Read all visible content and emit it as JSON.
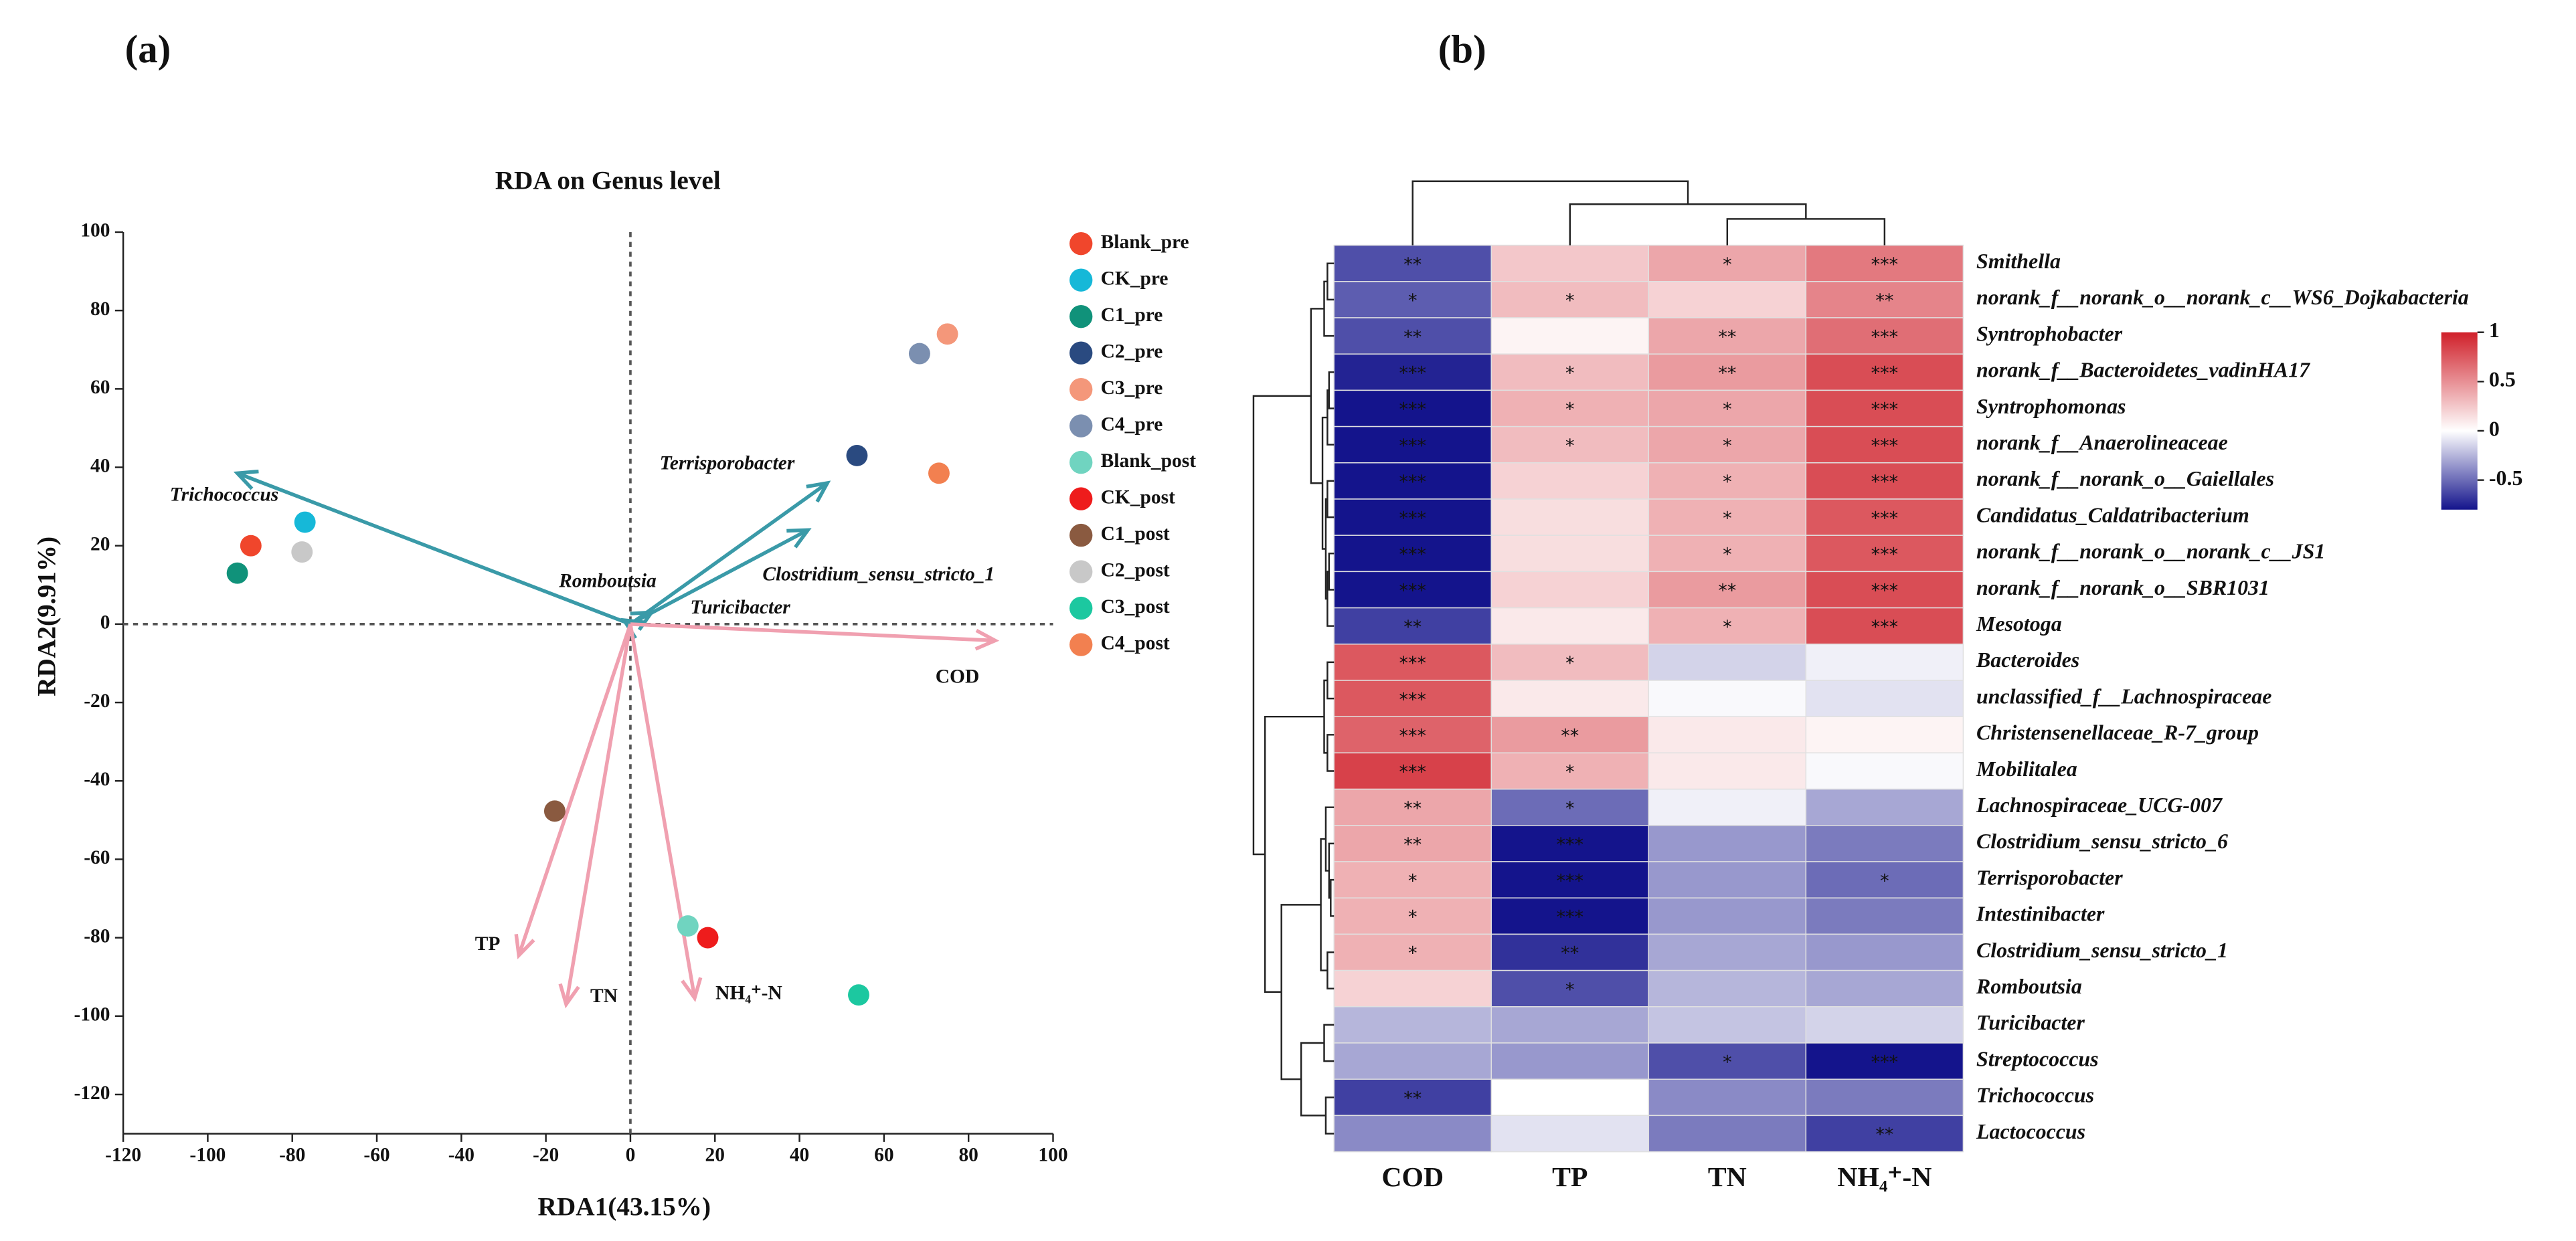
{
  "chart_data": [
    {
      "type": "scatter",
      "panel_label": "(a)",
      "title": "RDA on Genus level",
      "x_label": "RDA1(43.15%)",
      "y_label": "RDA2(9.91%)",
      "xlim": [
        -120,
        100
      ],
      "ylim": [
        -130,
        100
      ],
      "xticks": [
        -120,
        -100,
        -80,
        -60,
        -40,
        -20,
        0,
        20,
        40,
        60,
        80,
        100
      ],
      "yticks": [
        -120,
        -100,
        -80,
        -60,
        -40,
        -20,
        0,
        20,
        40,
        60,
        80,
        100
      ],
      "series": [
        {
          "name": "Blank_pre",
          "color": "#f0462c",
          "x": [
            -89.8
          ],
          "values": [
            20
          ]
        },
        {
          "name": "CK_pre",
          "color": "#16b8d8",
          "x": [
            -77
          ],
          "values": [
            26
          ]
        },
        {
          "name": "C1_pre",
          "color": "#10927a",
          "x": [
            -93
          ],
          "values": [
            13
          ]
        },
        {
          "name": "C2_pre",
          "color": "#2a4a80",
          "x": [
            53.6
          ],
          "values": [
            43
          ]
        },
        {
          "name": "C3_pre",
          "color": "#f4977a",
          "x": [
            75
          ],
          "values": [
            74
          ]
        },
        {
          "name": "C4_pre",
          "color": "#7b8fb0",
          "x": [
            68.4
          ],
          "values": [
            69
          ]
        },
        {
          "name": "Blank_post",
          "color": "#70d4c0",
          "x": [
            13.6
          ],
          "values": [
            -77
          ]
        },
        {
          "name": "CK_post",
          "color": "#ee1c1c",
          "x": [
            18.3
          ],
          "values": [
            -80
          ]
        },
        {
          "name": "C1_post",
          "color": "#8a5a40",
          "x": [
            -17.9
          ],
          "values": [
            -47.7
          ]
        },
        {
          "name": "C2_post",
          "color": "#c8c8c8",
          "x": [
            -77.7
          ],
          "values": [
            18.4
          ]
        },
        {
          "name": "C3_post",
          "color": "#1cc8a0",
          "x": [
            54
          ],
          "values": [
            -94.6
          ]
        },
        {
          "name": "C4_post",
          "color": "#f28050",
          "x": [
            73
          ],
          "values": [
            38.5
          ]
        }
      ],
      "arrows": [
        {
          "name": "Trichococcus",
          "color": "#3a9aa8",
          "x": -93,
          "y": 38.5
        },
        {
          "name": "Terrisporobacter",
          "color": "#3a9aa8",
          "x": 46.6,
          "y": 36
        },
        {
          "name": "Clostridium_sensu_stricto_1",
          "color": "#3a9aa8",
          "x": 42,
          "y": 24
        },
        {
          "name": "Romboutsia",
          "color": "#3a9aa8",
          "x": -1.5,
          "y": 1
        },
        {
          "name": "Turicibacter",
          "color": "#3a9aa8",
          "x": 5,
          "y": 3
        },
        {
          "name": "COD",
          "color": "#f0a0b0",
          "x": 86.3,
          "y": -4.2
        },
        {
          "name": "TP",
          "color": "#f0a0b0",
          "x": -26.4,
          "y": -84.5
        },
        {
          "name": "TN",
          "color": "#f0a0b0",
          "x": -15.2,
          "y": -97
        },
        {
          "name": "NH₄⁺-N",
          "color": "#f0a0b0",
          "x": 15.2,
          "y": -95.4
        }
      ]
    },
    {
      "type": "heatmap",
      "panel_label": "(b)",
      "columns": [
        "COD",
        "TP",
        "TN",
        "NH₄⁺-N"
      ],
      "rows": [
        "Smithella",
        "norank_f__norank_o__norank_c__WS6_Dojkabacteria",
        "Syntrophobacter",
        "norank_f__Bacteroidetes_vadinHA17",
        "Syntrophomonas",
        "norank_f__Anaerolineaceae",
        "norank_f__norank_o__Gaiellales",
        "Candidatus_Caldatribacterium",
        "norank_f__norank_o__norank_c__JS1",
        "norank_f__norank_o__SBR1031",
        "Mesotoga",
        "Bacteroides",
        "unclassified_f__Lachnospiraceae",
        "Christensenellaceae_R-7_group",
        "Mobilitalea",
        "Lachnospiraceae_UCG-007",
        "Clostridium_sensu_stricto_6",
        "Terrisporobacter",
        "Intestinibacter",
        "Clostridium_sensu_stricto_1",
        "Romboutsia",
        "Turicibacter",
        "Streptococcus",
        "Trichococcus",
        "Lactococcus"
      ],
      "values": [
        [
          -0.6,
          0.25,
          0.4,
          0.6
        ],
        [
          -0.55,
          0.3,
          0.2,
          0.55
        ],
        [
          -0.6,
          0.05,
          0.4,
          0.65
        ],
        [
          -0.75,
          0.3,
          0.45,
          0.8
        ],
        [
          -0.8,
          0.35,
          0.4,
          0.8
        ],
        [
          -0.8,
          0.3,
          0.4,
          0.8
        ],
        [
          -0.8,
          0.2,
          0.35,
          0.8
        ],
        [
          -0.8,
          0.15,
          0.35,
          0.75
        ],
        [
          -0.8,
          0.15,
          0.35,
          0.75
        ],
        [
          -0.8,
          0.2,
          0.45,
          0.8
        ],
        [
          -0.65,
          0.1,
          0.35,
          0.8
        ],
        [
          0.75,
          0.3,
          -0.15,
          -0.05
        ],
        [
          0.75,
          0.1,
          -0.02,
          -0.1
        ],
        [
          0.7,
          0.45,
          0.1,
          0.05
        ],
        [
          0.85,
          0.35,
          0.1,
          -0.02
        ],
        [
          0.4,
          -0.5,
          -0.05,
          -0.3
        ],
        [
          0.4,
          -0.8,
          -0.35,
          -0.45
        ],
        [
          0.35,
          -0.8,
          -0.35,
          -0.5
        ],
        [
          0.35,
          -0.8,
          -0.35,
          -0.45
        ],
        [
          0.35,
          -0.7,
          -0.3,
          -0.35
        ],
        [
          0.2,
          -0.6,
          -0.25,
          -0.3
        ],
        [
          -0.25,
          -0.3,
          -0.2,
          -0.15
        ],
        [
          -0.3,
          -0.35,
          -0.6,
          -0.8
        ],
        [
          -0.65,
          0,
          -0.4,
          -0.45
        ],
        [
          -0.4,
          -0.1,
          -0.45,
          -0.65
        ]
      ],
      "annotations": [
        [
          "**",
          null,
          "*",
          "***"
        ],
        [
          "*",
          "*",
          null,
          "**"
        ],
        [
          "**",
          null,
          "**",
          "***"
        ],
        [
          "***",
          "*",
          "**",
          "***"
        ],
        [
          "***",
          "*",
          "*",
          "***"
        ],
        [
          "***",
          "*",
          "*",
          "***"
        ],
        [
          "***",
          null,
          "*",
          "***"
        ],
        [
          "***",
          null,
          "*",
          "***"
        ],
        [
          "***",
          null,
          "*",
          "***"
        ],
        [
          "***",
          null,
          "**",
          "***"
        ],
        [
          "**",
          null,
          "*",
          "***"
        ],
        [
          "***",
          "*",
          null,
          null
        ],
        [
          "***",
          null,
          null,
          null
        ],
        [
          "***",
          "**",
          null,
          null
        ],
        [
          "***",
          "*",
          null,
          null
        ],
        [
          "**",
          "*",
          null,
          null
        ],
        [
          "**",
          "***",
          null,
          null
        ],
        [
          "*",
          "***",
          null,
          "*"
        ],
        [
          "*",
          "***",
          null,
          null
        ],
        [
          "*",
          "**",
          null,
          null
        ],
        [
          null,
          "*",
          null,
          null
        ],
        [
          null,
          null,
          null,
          null
        ],
        [
          null,
          null,
          "*",
          "***"
        ],
        [
          "**",
          null,
          null,
          null
        ],
        [
          null,
          null,
          null,
          "**"
        ]
      ],
      "zlim": [
        -0.8,
        1
      ],
      "colorscale": [
        "#14148c",
        "#ffffff",
        "#d0202a"
      ],
      "colorbar_ticks": [
        1,
        0.5,
        0,
        -0.5
      ]
    }
  ]
}
